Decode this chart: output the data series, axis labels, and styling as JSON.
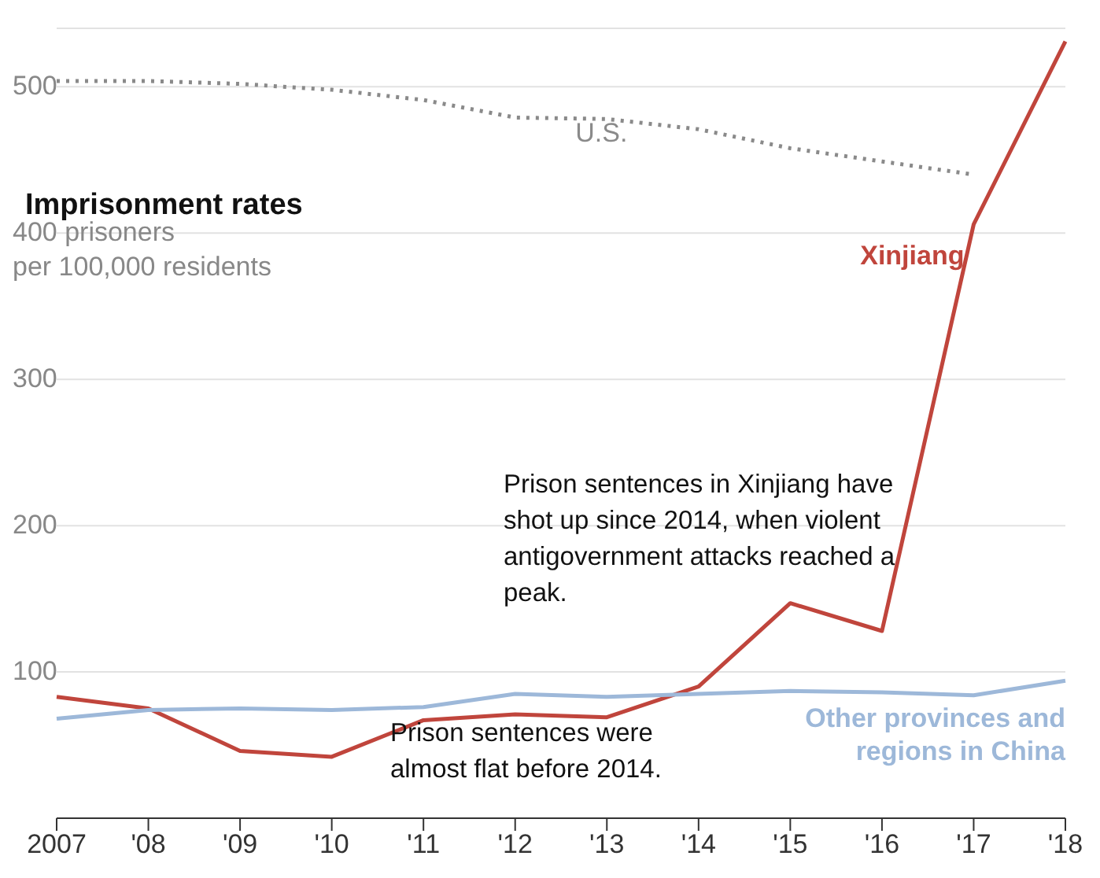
{
  "chart_data": {
    "type": "line",
    "title": "Imprisonment rates",
    "ylabel": "per 100,000 residents",
    "categories": [
      "2007",
      "'08",
      "'09",
      "'10",
      "'11",
      "'12",
      "'13",
      "'14",
      "'15",
      "'16",
      "'17",
      "'18"
    ],
    "series": [
      {
        "name": "U.S.",
        "color": "#8a8a8a",
        "line_style": "dotted",
        "values": [
          504,
          504,
          502,
          498,
          491,
          479,
          478,
          471,
          458,
          449,
          440,
          null
        ]
      },
      {
        "name": "Xinjiang",
        "color": "#c0453c",
        "values": [
          83,
          75,
          46,
          42,
          67,
          71,
          69,
          90,
          147,
          128,
          406,
          531
        ]
      },
      {
        "name": "Other provinces and regions in China",
        "color": "#9db8d9",
        "values": [
          68,
          74,
          75,
          74,
          76,
          85,
          83,
          85,
          87,
          86,
          84,
          94
        ]
      }
    ],
    "ylim": [
      0,
      540
    ],
    "yticks": [
      100,
      200,
      300,
      {
        "value": 400,
        "label": "400 prisoners"
      },
      500
    ],
    "grid": "y",
    "marker": "none",
    "annotations": [
      "Prison sentences in Xinjiang have shot up since 2014, when violent antigovernment attacks reached a peak.",
      "Prison sentences were almost flat before 2014."
    ]
  }
}
